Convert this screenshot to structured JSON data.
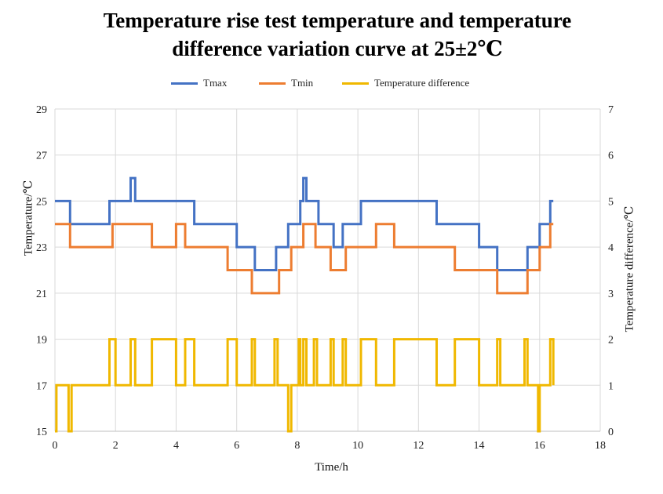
{
  "chart_data": {
    "type": "line",
    "title_lines": [
      "Temperature rise test temperature and temperature",
      "difference variation curve at 25±2℃"
    ],
    "xlabel": "Time/h",
    "ylabel_left": "Temperature/℃",
    "ylabel_right": "Temperature difference/℃",
    "xlim": [
      0,
      18
    ],
    "ylim_left": [
      15,
      29
    ],
    "ylim_right": [
      0,
      7
    ],
    "x_ticks": [
      0,
      2,
      4,
      6,
      8,
      10,
      12,
      14,
      16,
      18
    ],
    "y_ticks_left": [
      15,
      17,
      19,
      21,
      23,
      25,
      27,
      29
    ],
    "y_ticks_right": [
      0,
      1,
      2,
      3,
      4,
      5,
      6,
      7
    ],
    "grid": true,
    "legend_position": "top",
    "series": [
      {
        "name": "Tmax",
        "axis": "left",
        "color": "#4472C4",
        "step": true,
        "x": [
          0,
          0.5,
          1.8,
          2.5,
          2.65,
          4.6,
          6.0,
          6.6,
          7.3,
          7.7,
          8.1,
          8.2,
          8.3,
          8.7,
          9.2,
          9.5,
          10.1,
          12.6,
          14.0,
          14.6,
          15.6,
          16.0,
          16.35,
          16.45
        ],
        "y": [
          25,
          24,
          25,
          26,
          25,
          24,
          23,
          22,
          23,
          24,
          25,
          26,
          25,
          24,
          23,
          24,
          25,
          24,
          23,
          22,
          23,
          24,
          25,
          25
        ]
      },
      {
        "name": "Tmin",
        "axis": "left",
        "color": "#ED7D31",
        "step": true,
        "x": [
          0,
          0.5,
          1.9,
          3.2,
          4.0,
          4.3,
          5.7,
          6.5,
          7.4,
          7.8,
          8.2,
          8.6,
          9.1,
          9.6,
          10.6,
          11.2,
          13.2,
          14.6,
          15.6,
          16.0,
          16.35,
          16.45
        ],
        "y": [
          24,
          23,
          24,
          23,
          24,
          23,
          22,
          21,
          22,
          23,
          24,
          23,
          22,
          23,
          24,
          23,
          22,
          21,
          22,
          23,
          24,
          24
        ]
      },
      {
        "name": "Temperature difference",
        "axis": "right",
        "color": "#F0B800",
        "step": true,
        "x": [
          0,
          0.05,
          0.45,
          0.55,
          1.8,
          2.0,
          2.5,
          2.65,
          3.2,
          4.0,
          4.3,
          4.6,
          5.7,
          6.0,
          6.5,
          6.6,
          7.25,
          7.35,
          7.7,
          7.8,
          8.05,
          8.1,
          8.2,
          8.3,
          8.55,
          8.65,
          9.1,
          9.2,
          9.5,
          9.6,
          10.1,
          10.6,
          11.2,
          12.6,
          13.2,
          14.0,
          14.6,
          14.7,
          15.5,
          15.6,
          15.95,
          16.0,
          16.35,
          16.45
        ],
        "y": [
          0,
          1,
          0,
          1,
          2,
          1,
          2,
          1,
          2,
          1,
          2,
          1,
          2,
          1,
          2,
          1,
          2,
          1,
          0,
          1,
          2,
          1,
          2,
          1,
          2,
          1,
          2,
          1,
          2,
          1,
          2,
          1,
          2,
          1,
          2,
          1,
          2,
          1,
          2,
          1,
          0,
          1,
          2,
          1
        ]
      }
    ]
  }
}
